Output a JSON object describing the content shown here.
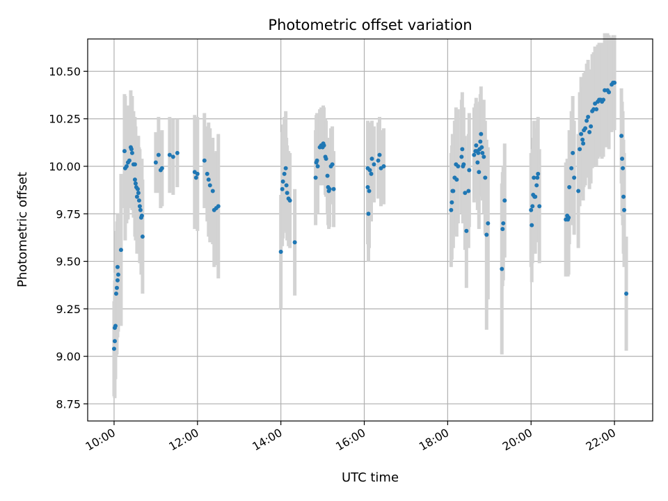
{
  "chart_data": {
    "type": "scatter",
    "title": "Photometric offset variation",
    "xlabel": "UTC time",
    "ylabel": "Photometric offset",
    "xlim": [
      "09:22",
      "22:55"
    ],
    "ylim": [
      8.66,
      10.67
    ],
    "x_ticks": [
      "10:00",
      "12:00",
      "14:00",
      "16:00",
      "18:00",
      "20:00",
      "22:00"
    ],
    "y_ticks": [
      "8.75",
      "9.00",
      "9.25",
      "9.50",
      "9.75",
      "10.00",
      "10.25",
      "10.50"
    ],
    "grid": true,
    "marker_color": "#1f77b4",
    "errorbar_color": "#d3d3d3",
    "points": [
      [
        "10:00",
        9.04,
        0.25
      ],
      [
        "10:01",
        9.08,
        0.3
      ],
      [
        "10:01",
        9.15,
        0.25
      ],
      [
        "10:02",
        9.16,
        0.28
      ],
      [
        "10:03",
        9.33,
        0.33
      ],
      [
        "10:04",
        9.36,
        0.35
      ],
      [
        "10:05",
        9.4,
        0.3
      ],
      [
        "10:05",
        9.47,
        0.28
      ],
      [
        "10:06",
        9.43,
        0.3
      ],
      [
        "10:10",
        9.56,
        0.4
      ],
      [
        "10:15",
        10.08,
        0.3
      ],
      [
        "10:16",
        9.99,
        0.38
      ],
      [
        "10:18",
        10.0,
        0.3
      ],
      [
        "10:20",
        10.02,
        0.3
      ],
      [
        "10:22",
        10.03,
        0.25
      ],
      [
        "10:24",
        10.1,
        0.3
      ],
      [
        "10:25",
        10.09,
        0.25
      ],
      [
        "10:26",
        10.07,
        0.3
      ],
      [
        "10:28",
        10.01,
        0.28
      ],
      [
        "10:30",
        10.01,
        0.25
      ],
      [
        "10:30",
        9.93,
        0.3
      ],
      [
        "10:31",
        9.91,
        0.3
      ],
      [
        "10:32",
        9.89,
        0.25
      ],
      [
        "10:33",
        9.84,
        0.3
      ],
      [
        "10:34",
        9.88,
        0.28
      ],
      [
        "10:35",
        9.86,
        0.3
      ],
      [
        "10:36",
        9.82,
        0.28
      ],
      [
        "10:37",
        9.79,
        0.3
      ],
      [
        "10:38",
        9.77,
        0.25
      ],
      [
        "10:39",
        9.73,
        0.3
      ],
      [
        "10:40",
        9.74,
        0.3
      ],
      [
        "10:41",
        9.63,
        0.3
      ],
      [
        "11:00",
        10.02,
        0.16
      ],
      [
        "11:04",
        10.06,
        0.2
      ],
      [
        "11:07",
        9.98,
        0.2
      ],
      [
        "11:09",
        9.99,
        0.2
      ],
      [
        "11:20",
        10.06,
        0.2
      ],
      [
        "11:25",
        10.05,
        0.2
      ],
      [
        "11:31",
        10.07,
        0.18
      ],
      [
        "11:56",
        9.97,
        0.3
      ],
      [
        "11:58",
        9.94,
        0.25
      ],
      [
        "12:00",
        9.96,
        0.3
      ],
      [
        "12:10",
        10.03,
        0.25
      ],
      [
        "12:14",
        9.96,
        0.25
      ],
      [
        "12:16",
        9.93,
        0.3
      ],
      [
        "12:18",
        9.9,
        0.3
      ],
      [
        "12:22",
        9.87,
        0.28
      ],
      [
        "12:24",
        9.77,
        0.3
      ],
      [
        "12:27",
        9.78,
        0.3
      ],
      [
        "12:30",
        9.79,
        0.38
      ],
      [
        "14:00",
        9.55,
        0.3
      ],
      [
        "14:02",
        9.88,
        0.3
      ],
      [
        "14:03",
        9.92,
        0.3
      ],
      [
        "14:05",
        9.96,
        0.3
      ],
      [
        "14:07",
        9.99,
        0.3
      ],
      [
        "14:08",
        9.9,
        0.25
      ],
      [
        "14:09",
        9.86,
        0.25
      ],
      [
        "14:11",
        9.83,
        0.25
      ],
      [
        "14:13",
        9.82,
        0.25
      ],
      [
        "14:20",
        9.6,
        0.28
      ],
      [
        "14:50",
        9.94,
        0.25
      ],
      [
        "14:51",
        10.02,
        0.25
      ],
      [
        "14:52",
        10.03,
        0.25
      ],
      [
        "14:53",
        10.0,
        0.25
      ],
      [
        "14:56",
        10.1,
        0.2
      ],
      [
        "14:58",
        10.11,
        0.2
      ],
      [
        "15:00",
        10.1,
        0.2
      ],
      [
        "15:01",
        10.12,
        0.2
      ],
      [
        "15:02",
        10.11,
        0.2
      ],
      [
        "15:04",
        10.05,
        0.2
      ],
      [
        "15:05",
        10.04,
        0.2
      ],
      [
        "15:07",
        9.95,
        0.2
      ],
      [
        "15:08",
        9.89,
        0.2
      ],
      [
        "15:09",
        9.87,
        0.2
      ],
      [
        "15:10",
        9.88,
        0.2
      ],
      [
        "15:12",
        10.0,
        0.2
      ],
      [
        "15:14",
        10.01,
        0.2
      ],
      [
        "15:16",
        9.88,
        0.2
      ],
      [
        "16:05",
        9.89,
        0.3
      ],
      [
        "16:05",
        9.99,
        0.25
      ],
      [
        "16:06",
        9.75,
        0.25
      ],
      [
        "16:07",
        9.87,
        0.3
      ],
      [
        "16:08",
        9.98,
        0.25
      ],
      [
        "16:10",
        9.96,
        0.25
      ],
      [
        "16:11",
        10.04,
        0.2
      ],
      [
        "16:14",
        10.01,
        0.2
      ],
      [
        "16:20",
        10.03,
        0.2
      ],
      [
        "16:22",
        10.06,
        0.2
      ],
      [
        "16:24",
        9.99,
        0.2
      ],
      [
        "16:28",
        10.0,
        0.2
      ],
      [
        "18:05",
        9.77,
        0.3
      ],
      [
        "18:06",
        9.81,
        0.3
      ],
      [
        "18:07",
        9.87,
        0.3
      ],
      [
        "18:08",
        9.87,
        0.3
      ],
      [
        "18:10",
        9.94,
        0.3
      ],
      [
        "18:12",
        10.01,
        0.3
      ],
      [
        "18:13",
        9.93,
        0.3
      ],
      [
        "18:15",
        10.0,
        0.3
      ],
      [
        "18:20",
        10.05,
        0.3
      ],
      [
        "18:21",
        10.09,
        0.3
      ],
      [
        "18:22",
        10.0,
        0.3
      ],
      [
        "18:23",
        10.01,
        0.3
      ],
      [
        "18:25",
        9.86,
        0.3
      ],
      [
        "18:27",
        9.66,
        0.3
      ],
      [
        "18:30",
        9.87,
        0.3
      ],
      [
        "18:31",
        9.98,
        0.3
      ],
      [
        "18:38",
        10.06,
        0.25
      ],
      [
        "18:40",
        10.08,
        0.25
      ],
      [
        "18:41",
        10.11,
        0.25
      ],
      [
        "18:42",
        10.08,
        0.25
      ],
      [
        "18:43",
        10.02,
        0.25
      ],
      [
        "18:44",
        10.07,
        0.25
      ],
      [
        "18:45",
        9.97,
        0.3
      ],
      [
        "18:46",
        10.09,
        0.25
      ],
      [
        "18:47",
        10.13,
        0.25
      ],
      [
        "18:48",
        10.17,
        0.25
      ],
      [
        "18:49",
        10.1,
        0.25
      ],
      [
        "18:50",
        10.07,
        0.25
      ],
      [
        "18:52",
        10.05,
        0.3
      ],
      [
        "18:54",
        9.94,
        0.3
      ],
      [
        "18:56",
        9.64,
        0.5
      ],
      [
        "18:58",
        9.7,
        0.4
      ],
      [
        "19:18",
        9.46,
        0.45
      ],
      [
        "19:19",
        9.67,
        0.3
      ],
      [
        "19:20",
        9.7,
        0.3
      ],
      [
        "19:22",
        9.82,
        0.3
      ],
      [
        "20:00",
        9.77,
        0.3
      ],
      [
        "20:01",
        9.69,
        0.3
      ],
      [
        "20:02",
        9.79,
        0.3
      ],
      [
        "20:03",
        9.85,
        0.3
      ],
      [
        "20:04",
        9.94,
        0.3
      ],
      [
        "20:05",
        9.84,
        0.3
      ],
      [
        "20:06",
        9.84,
        0.3
      ],
      [
        "20:08",
        9.9,
        0.3
      ],
      [
        "20:09",
        9.94,
        0.3
      ],
      [
        "20:10",
        9.96,
        0.3
      ],
      [
        "20:12",
        9.79,
        0.3
      ],
      [
        "20:50",
        9.72,
        0.3
      ],
      [
        "20:52",
        9.74,
        0.3
      ],
      [
        "20:53",
        9.72,
        0.3
      ],
      [
        "20:54",
        9.73,
        0.3
      ],
      [
        "20:55",
        9.89,
        0.3
      ],
      [
        "20:58",
        9.99,
        0.3
      ],
      [
        "21:00",
        10.07,
        0.3
      ],
      [
        "21:02",
        9.94,
        0.3
      ],
      [
        "21:08",
        9.87,
        0.3
      ],
      [
        "21:10",
        10.09,
        0.3
      ],
      [
        "21:12",
        10.17,
        0.3
      ],
      [
        "21:14",
        10.14,
        0.3
      ],
      [
        "21:15",
        10.12,
        0.3
      ],
      [
        "21:16",
        10.19,
        0.3
      ],
      [
        "21:18",
        10.2,
        0.3
      ],
      [
        "21:20",
        10.24,
        0.3
      ],
      [
        "21:22",
        10.26,
        0.3
      ],
      [
        "21:24",
        10.18,
        0.3
      ],
      [
        "21:26",
        10.21,
        0.3
      ],
      [
        "21:28",
        10.29,
        0.3
      ],
      [
        "21:30",
        10.3,
        0.3
      ],
      [
        "21:32",
        10.33,
        0.3
      ],
      [
        "21:34",
        10.3,
        0.3
      ],
      [
        "21:36",
        10.34,
        0.3
      ],
      [
        "21:38",
        10.35,
        0.3
      ],
      [
        "21:40",
        10.35,
        0.3
      ],
      [
        "21:42",
        10.34,
        0.3
      ],
      [
        "21:44",
        10.35,
        0.3
      ],
      [
        "21:46",
        10.4,
        0.3
      ],
      [
        "21:50",
        10.4,
        0.3
      ],
      [
        "21:52",
        10.39,
        0.3
      ],
      [
        "21:56",
        10.43,
        0.25
      ],
      [
        "21:58",
        10.44,
        0.25
      ],
      [
        "22:00",
        10.44,
        0.25
      ],
      [
        "22:10",
        10.16,
        0.25
      ],
      [
        "22:11",
        10.04,
        0.3
      ],
      [
        "22:12",
        9.99,
        0.3
      ],
      [
        "22:13",
        9.84,
        0.3
      ],
      [
        "22:14",
        9.77,
        0.3
      ],
      [
        "22:17",
        9.33,
        0.3
      ]
    ]
  }
}
